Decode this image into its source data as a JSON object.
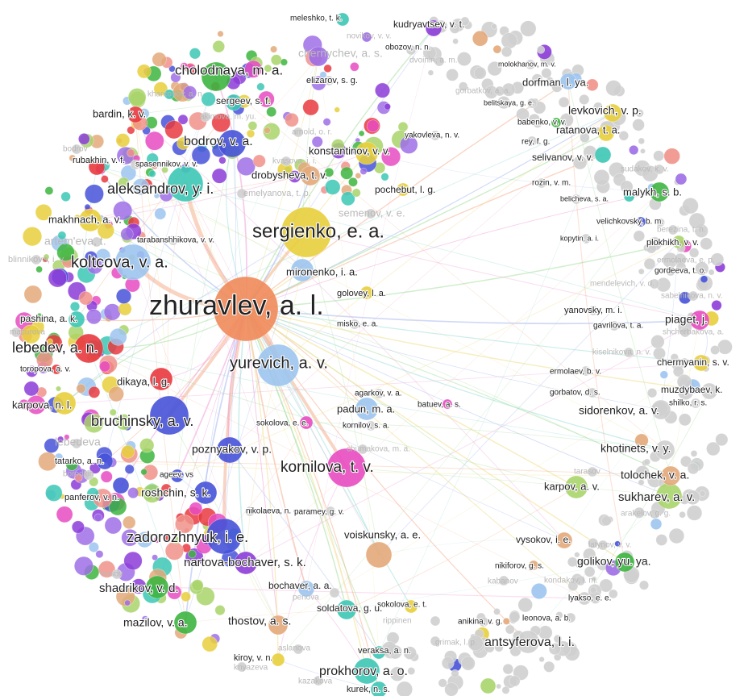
{
  "colors": {
    "orange": "#ef8a5a",
    "yellow": "#e8cf3c",
    "teal": "#3cc7b5",
    "red": "#e8393f",
    "blue": "#4652d8",
    "lightblue": "#9cc4ee",
    "green": "#3db540",
    "lime": "#a8d46a",
    "purple": "#9d6ee6",
    "pink": "#e84bc1",
    "violet": "#8c3cd8",
    "salmon": "#f0928a",
    "peach": "#e3a97a",
    "grey": "#cfcfcf",
    "edgeOrange": "#f5b090",
    "edgeBlue": "#a8b8f0",
    "edgePink": "#f0a0d8",
    "edgeTeal": "#9ee0d8",
    "edgeGreen": "#a8e0a0",
    "edgeYellow": "#f0e090"
  },
  "nodes": [
    {
      "label": "zhuravlev, a. l.",
      "color": "orange",
      "size": 40
    },
    {
      "label": "sergienko, e. a.",
      "color": "yellow",
      "size": 31
    },
    {
      "label": "koltcova, v. a.",
      "color": "lightblue",
      "size": 22
    },
    {
      "label": "yurevich, a. v.",
      "color": "lightblue",
      "size": 26
    },
    {
      "label": "kornilova, t. v.",
      "color": "pink",
      "size": 24
    },
    {
      "label": "bruchinsky, a. v.",
      "color": "blue",
      "size": 24
    },
    {
      "label": "zadorozhnyuk, i. e.",
      "color": "blue",
      "size": 22
    },
    {
      "label": "aleksandrov, y. i.",
      "color": "teal",
      "size": 22
    },
    {
      "label": "cholodnaya, m. a.",
      "color": "green",
      "size": 18
    },
    {
      "label": "bodrov, v. a.",
      "color": "blue",
      "size": 17
    },
    {
      "label": "lebedev, a. n.",
      "color": "red",
      "size": 18
    },
    {
      "label": "prokhorov, a. o.",
      "color": "teal",
      "size": 16
    },
    {
      "label": "antsyferova, l. i.",
      "color": "grey",
      "size": 14
    },
    {
      "label": "sukharev, a. v.",
      "color": "lime",
      "size": 16
    },
    {
      "label": "shadrikov, v. d.",
      "color": "green",
      "size": 14
    },
    {
      "label": "nartova-bochaver, s. k.",
      "color": "violet",
      "size": 14
    },
    {
      "label": "kudryavtsev, v. t.",
      "color": "violet",
      "size": 10
    },
    {
      "label": "chernychev, a. s.",
      "color": "purple",
      "size": 12
    },
    {
      "label": "dorfman, l. ya.",
      "color": "lightblue",
      "size": 10
    },
    {
      "label": "levkovich, v. p.",
      "color": "yellow",
      "size": 11
    },
    {
      "label": "bardin, k. v.",
      "color": "red",
      "size": 10
    },
    {
      "label": "sergeev, s. f.",
      "color": "teal",
      "size": 10
    },
    {
      "label": "ratanova, t. a.",
      "color": "yellow",
      "size": 10
    },
    {
      "label": "konstantinov, v. v.",
      "color": "yellow",
      "size": 14
    },
    {
      "label": "selivanov, v. v.",
      "color": "teal",
      "size": 10
    },
    {
      "label": "drobysheva, t. v.",
      "color": "peach",
      "size": 12
    },
    {
      "label": "malykh, s. b.",
      "color": "green",
      "size": 12
    },
    {
      "label": "makhnach, a. v.",
      "color": "yellow",
      "size": 14
    },
    {
      "label": "plokhikh, v. v.",
      "color": "lime",
      "size": 8
    },
    {
      "label": "mironenko, i. a.",
      "color": "lightblue",
      "size": 14
    },
    {
      "label": "pashina, a. k.",
      "color": "teal",
      "size": 10
    },
    {
      "label": "piaget, j.",
      "color": "pink",
      "size": 12
    },
    {
      "label": "dikaya, l. g.",
      "color": "red",
      "size": 14
    },
    {
      "label": "chermyanin, s. v.",
      "color": "yellow",
      "size": 10
    },
    {
      "label": "karpova, n. l.",
      "color": "yellow",
      "size": 14
    },
    {
      "label": "muzdybaev, k.",
      "color": "grey",
      "size": 10
    },
    {
      "label": "padun, m. a.",
      "color": "lightblue",
      "size": 14
    },
    {
      "label": "sidorenkov, a. v.",
      "color": "grey",
      "size": 12
    },
    {
      "label": "poznyakov, v. p.",
      "color": "blue",
      "size": 16
    },
    {
      "label": "khotinets, v. y.",
      "color": "grey",
      "size": 12
    },
    {
      "label": "tolochek, v. a.",
      "color": "peach",
      "size": 12
    },
    {
      "label": "karpov, a. v.",
      "color": "lime",
      "size": 14
    },
    {
      "label": "tatarko, a. n.",
      "color": "blue",
      "size": 10
    },
    {
      "label": "roshchin, s. k.",
      "color": "blue",
      "size": 14
    },
    {
      "label": "panferov, v. n.",
      "color": "blue",
      "size": 10
    },
    {
      "label": "voiskunsky, a. e.",
      "color": "peach",
      "size": 16
    },
    {
      "label": "vysokov, i. e.",
      "color": "peach",
      "size": 10
    },
    {
      "label": "golikov, yu. ya.",
      "color": "green",
      "size": 12
    },
    {
      "label": "bochaver, a. a.",
      "color": "lightblue",
      "size": 10
    },
    {
      "label": "mazilov, v. a.",
      "color": "green",
      "size": 14
    },
    {
      "label": "thostov, a. s.",
      "color": "peach",
      "size": 12
    },
    {
      "label": "sokolova, e. t.",
      "color": "yellow",
      "size": 8
    },
    {
      "label": "soldatova, g. u.",
      "color": "teal",
      "size": 12
    },
    {
      "label": "kiroy, v. n.",
      "color": "yellow",
      "size": 8
    },
    {
      "label": "kurek, n. s.",
      "color": "teal",
      "size": 10
    },
    {
      "label": "rubakhin, v. f.",
      "color": "red",
      "size": 10
    },
    {
      "label": "ageev, vs",
      "color": "blue",
      "size": 8
    },
    {
      "label": "sokolova, e. e.",
      "color": "pink",
      "size": 8
    },
    {
      "label": "veraksa, a. n.",
      "color": "teal",
      "size": 8
    },
    {
      "label": "lyakso, e. e.",
      "color": "grey",
      "size": 8
    },
    {
      "label": "pochebut, l. g.",
      "color": "yellow",
      "size": 8
    },
    {
      "label": "golovey, l. a.",
      "color": "yellow",
      "size": 8
    },
    {
      "label": "meleshko, t. k.",
      "color": "teal",
      "size": 8
    },
    {
      "label": "obozov, n. n.",
      "color": "grey",
      "size": 6
    },
    {
      "label": "molokhanov, m. v.",
      "color": "grey",
      "size": 6
    },
    {
      "label": "elizarov, s. g.",
      "color": "grey",
      "size": 6
    },
    {
      "label": "arnold, o. r.",
      "color": "grey",
      "size": 6
    },
    {
      "label": "spasennikov, v. v.",
      "color": "grey",
      "size": 6
    },
    {
      "label": "rozin, v. m.",
      "color": "grey",
      "size": 6
    },
    {
      "label": "belicheva, s. a.",
      "color": "grey",
      "size": 6
    },
    {
      "label": "velichkovsky, b. m.",
      "color": "blue",
      "size": 6
    },
    {
      "label": "kopytin, a. i.",
      "color": "grey",
      "size": 6
    },
    {
      "label": "gordeeva, t. o.",
      "color": "grey",
      "size": 6
    },
    {
      "label": "mendelevich, v. d.",
      "color": "grey",
      "size": 6
    },
    {
      "label": "yanovsky, m. i.",
      "color": "grey",
      "size": 6
    },
    {
      "label": "gavrilova, t. a.",
      "color": "grey",
      "size": 6
    },
    {
      "label": "toropova, a. v.",
      "color": "red",
      "size": 6
    },
    {
      "label": "ermolaev, b. v.",
      "color": "grey",
      "size": 6
    },
    {
      "label": "gorbatov, d. s.",
      "color": "grey",
      "size": 6
    },
    {
      "label": "shilko, r. s.",
      "color": "grey",
      "size": 6
    },
    {
      "label": "nikolaeva, n. o.",
      "color": "grey",
      "size": 6
    },
    {
      "label": "paramey, g. v.",
      "color": "grey",
      "size": 6
    },
    {
      "label": "nikiforov, g. s.",
      "color": "peach",
      "size": 6
    },
    {
      "label": "kondakov, i. m.",
      "color": "grey",
      "size": 6
    },
    {
      "label": "leonova, a. b.",
      "color": "grey",
      "size": 6
    },
    {
      "label": "anikina, v. g.",
      "color": "grey",
      "size": 6
    },
    {
      "label": "grimak, l. p.",
      "color": "grey",
      "size": 6
    },
    {
      "label": "rey, f. g.",
      "color": "grey",
      "size": 6
    },
    {
      "label": "babenko, v. v.",
      "color": "green",
      "size": 6
    },
    {
      "label": "belitskaya, g. e.",
      "color": "grey",
      "size": 6
    },
    {
      "label": "gorbatkov, a. a.",
      "color": "grey",
      "size": 6
    },
    {
      "label": "novikov, v. v.",
      "color": "purple",
      "size": 6
    },
    {
      "label": "dvoinin, a. m.",
      "color": "grey",
      "size": 6
    },
    {
      "label": "kharitonov, a. n.",
      "color": "teal",
      "size": 6
    },
    {
      "label": "akimova, m. yu.",
      "color": "grey",
      "size": 6
    },
    {
      "label": "kvasova, i. i.",
      "color": "grey",
      "size": 6
    },
    {
      "label": "emelyanova, t. p.",
      "color": "grey",
      "size": 6
    },
    {
      "label": "yakovleva, n. v.",
      "color": "grey",
      "size": 6
    },
    {
      "label": "semenov, v. e.",
      "color": "grey",
      "size": 6
    },
    {
      "label": "tarabanshhikova, v. v.",
      "color": "grey",
      "size": 6
    },
    {
      "label": "artem'eva, t.",
      "color": "grey",
      "size": 6
    },
    {
      "label": "blinnikova, i. v.",
      "color": "grey",
      "size": 6
    },
    {
      "label": "misko, e. a.",
      "color": "grey",
      "size": 6
    },
    {
      "label": "agarkov, v. a.",
      "color": "grey",
      "size": 6
    },
    {
      "label": "kornilov, s. a.",
      "color": "grey",
      "size": 6
    },
    {
      "label": "batuev, a. s.",
      "color": "pink",
      "size": 6
    },
    {
      "label": "chumakova, m. a.",
      "color": "grey",
      "size": 6
    },
    {
      "label": "tarasov",
      "color": "grey",
      "size": 6
    },
    {
      "label": "arakelov, g. g.",
      "color": "grey",
      "size": 6
    },
    {
      "label": "latynov, v. v.",
      "color": "grey",
      "size": 6
    },
    {
      "label": "lebedeva",
      "color": "grey",
      "size": 6
    },
    {
      "label": "bodrov",
      "color": "grey",
      "size": 6
    },
    {
      "label": "mazurova",
      "color": "grey",
      "size": 6
    },
    {
      "label": "ermolaeva, e. p.",
      "color": "grey",
      "size": 6
    },
    {
      "label": "sudakov, k. v.",
      "color": "grey",
      "size": 6
    },
    {
      "label": "berezina, t. n.",
      "color": "grey",
      "size": 6
    },
    {
      "label": "sabelnikova, n. v.",
      "color": "grey",
      "size": 6
    },
    {
      "label": "shcherbakova, a.",
      "color": "grey",
      "size": 6
    },
    {
      "label": "kiselnikova, n. v.",
      "color": "grey",
      "size": 6
    },
    {
      "label": "rippinen",
      "color": "grey",
      "size": 6
    },
    {
      "label": "aslanova",
      "color": "grey",
      "size": 6
    },
    {
      "label": "knyazeva",
      "color": "grey",
      "size": 6
    },
    {
      "label": "kazakova",
      "color": "grey",
      "size": 6
    },
    {
      "label": "penova",
      "color": "grey",
      "size": 6
    },
    {
      "label": "kabanov",
      "color": "grey",
      "size": 6
    },
    {
      "label": "trusov",
      "color": "grey",
      "size": 6
    },
    {
      "label": "borodkin",
      "color": "grey",
      "size": 6
    }
  ]
}
